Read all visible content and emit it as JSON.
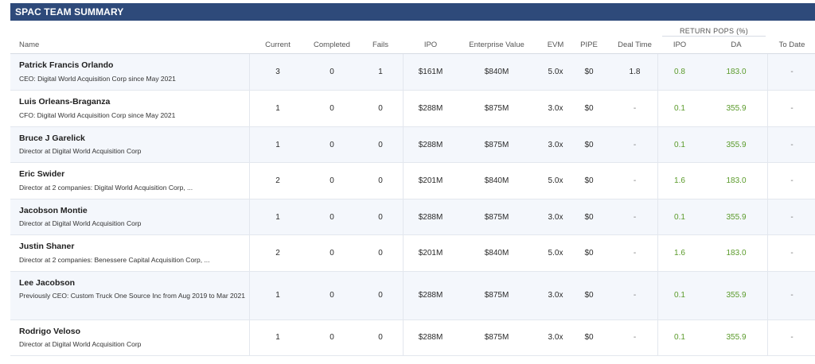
{
  "title": "SPAC TEAM SUMMARY",
  "group_header": "RETURN POPS (%)",
  "columns": {
    "name": "Name",
    "current": "Current",
    "completed": "Completed",
    "fails": "Fails",
    "ipo": "IPO",
    "ev": "Enterprise Value",
    "evm": "EVM",
    "pipe": "PIPE",
    "deal_time": "Deal Time",
    "ret_ipo": "IPO",
    "ret_da": "DA",
    "ret_todate": "To Date"
  },
  "rows": [
    {
      "name": "Patrick Francis Orlando",
      "sub": "CEO: Digital World Acquisition Corp since May 2021",
      "current": "3",
      "completed": "0",
      "fails": "1",
      "ipo": "$161M",
      "ev": "$840M",
      "evm": "5.0x",
      "pipe": "$0",
      "deal_time": "1.8",
      "ret_ipo": "0.8",
      "ret_da": "183.0",
      "ret_todate": "-"
    },
    {
      "name": "Luis Orleans-Braganza",
      "sub": "CFO: Digital World Acquisition Corp since May 2021",
      "current": "1",
      "completed": "0",
      "fails": "0",
      "ipo": "$288M",
      "ev": "$875M",
      "evm": "3.0x",
      "pipe": "$0",
      "deal_time": "-",
      "ret_ipo": "0.1",
      "ret_da": "355.9",
      "ret_todate": "-"
    },
    {
      "name": "Bruce J Garelick",
      "sub": "Director at Digital World Acquisition Corp",
      "current": "1",
      "completed": "0",
      "fails": "0",
      "ipo": "$288M",
      "ev": "$875M",
      "evm": "3.0x",
      "pipe": "$0",
      "deal_time": "-",
      "ret_ipo": "0.1",
      "ret_da": "355.9",
      "ret_todate": "-"
    },
    {
      "name": "Eric Swider",
      "sub": "Director at 2 companies: Digital World Acquisition Corp, ...",
      "current": "2",
      "completed": "0",
      "fails": "0",
      "ipo": "$201M",
      "ev": "$840M",
      "evm": "5.0x",
      "pipe": "$0",
      "deal_time": "-",
      "ret_ipo": "1.6",
      "ret_da": "183.0",
      "ret_todate": "-"
    },
    {
      "name": "Jacobson Montie",
      "sub": "Director at Digital World Acquisition Corp",
      "current": "1",
      "completed": "0",
      "fails": "0",
      "ipo": "$288M",
      "ev": "$875M",
      "evm": "3.0x",
      "pipe": "$0",
      "deal_time": "-",
      "ret_ipo": "0.1",
      "ret_da": "355.9",
      "ret_todate": "-"
    },
    {
      "name": "Justin Shaner",
      "sub": "Director at 2 companies: Benessere Capital Acquisition Corp, ...",
      "current": "2",
      "completed": "0",
      "fails": "0",
      "ipo": "$201M",
      "ev": "$840M",
      "evm": "5.0x",
      "pipe": "$0",
      "deal_time": "-",
      "ret_ipo": "1.6",
      "ret_da": "183.0",
      "ret_todate": "-"
    },
    {
      "name": "Lee Jacobson",
      "sub": "Previously CEO: Custom Truck One Source Inc from Aug 2019 to Mar 2021",
      "current": "1",
      "completed": "0",
      "fails": "0",
      "ipo": "$288M",
      "ev": "$875M",
      "evm": "3.0x",
      "pipe": "$0",
      "deal_time": "-",
      "ret_ipo": "0.1",
      "ret_da": "355.9",
      "ret_todate": "-"
    },
    {
      "name": "Rodrigo Veloso",
      "sub": "Director at Digital World Acquisition Corp",
      "current": "1",
      "completed": "0",
      "fails": "0",
      "ipo": "$288M",
      "ev": "$875M",
      "evm": "3.0x",
      "pipe": "$0",
      "deal_time": "-",
      "ret_ipo": "0.1",
      "ret_da": "355.9",
      "ret_todate": "-"
    }
  ],
  "colors": {
    "header_bg": "#2e4a7a",
    "row_alt": "#f4f7fc",
    "positive_return": "#5a9a2a"
  }
}
